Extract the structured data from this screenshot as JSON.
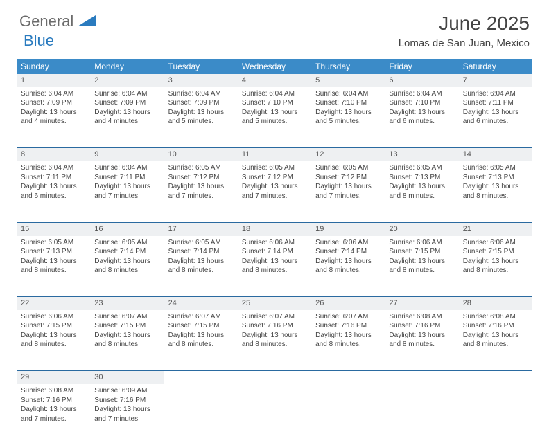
{
  "logo": {
    "text1": "General",
    "text2": "Blue",
    "color1": "#6b6b6b",
    "color2": "#2a7bbf"
  },
  "title": "June 2025",
  "location": "Lomas de San Juan, Mexico",
  "colors": {
    "header_bg": "#3b8bc8",
    "daynum_bg": "#eef0f2",
    "row_border": "#2a6aa0",
    "text": "#444444"
  },
  "weekdays": [
    "Sunday",
    "Monday",
    "Tuesday",
    "Wednesday",
    "Thursday",
    "Friday",
    "Saturday"
  ],
  "weeks": [
    [
      {
        "n": "1",
        "sr": "6:04 AM",
        "ss": "7:09 PM",
        "dl": "13 hours and 4 minutes."
      },
      {
        "n": "2",
        "sr": "6:04 AM",
        "ss": "7:09 PM",
        "dl": "13 hours and 4 minutes."
      },
      {
        "n": "3",
        "sr": "6:04 AM",
        "ss": "7:09 PM",
        "dl": "13 hours and 5 minutes."
      },
      {
        "n": "4",
        "sr": "6:04 AM",
        "ss": "7:10 PM",
        "dl": "13 hours and 5 minutes."
      },
      {
        "n": "5",
        "sr": "6:04 AM",
        "ss": "7:10 PM",
        "dl": "13 hours and 5 minutes."
      },
      {
        "n": "6",
        "sr": "6:04 AM",
        "ss": "7:10 PM",
        "dl": "13 hours and 6 minutes."
      },
      {
        "n": "7",
        "sr": "6:04 AM",
        "ss": "7:11 PM",
        "dl": "13 hours and 6 minutes."
      }
    ],
    [
      {
        "n": "8",
        "sr": "6:04 AM",
        "ss": "7:11 PM",
        "dl": "13 hours and 6 minutes."
      },
      {
        "n": "9",
        "sr": "6:04 AM",
        "ss": "7:11 PM",
        "dl": "13 hours and 7 minutes."
      },
      {
        "n": "10",
        "sr": "6:05 AM",
        "ss": "7:12 PM",
        "dl": "13 hours and 7 minutes."
      },
      {
        "n": "11",
        "sr": "6:05 AM",
        "ss": "7:12 PM",
        "dl": "13 hours and 7 minutes."
      },
      {
        "n": "12",
        "sr": "6:05 AM",
        "ss": "7:12 PM",
        "dl": "13 hours and 7 minutes."
      },
      {
        "n": "13",
        "sr": "6:05 AM",
        "ss": "7:13 PM",
        "dl": "13 hours and 8 minutes."
      },
      {
        "n": "14",
        "sr": "6:05 AM",
        "ss": "7:13 PM",
        "dl": "13 hours and 8 minutes."
      }
    ],
    [
      {
        "n": "15",
        "sr": "6:05 AM",
        "ss": "7:13 PM",
        "dl": "13 hours and 8 minutes."
      },
      {
        "n": "16",
        "sr": "6:05 AM",
        "ss": "7:14 PM",
        "dl": "13 hours and 8 minutes."
      },
      {
        "n": "17",
        "sr": "6:05 AM",
        "ss": "7:14 PM",
        "dl": "13 hours and 8 minutes."
      },
      {
        "n": "18",
        "sr": "6:06 AM",
        "ss": "7:14 PM",
        "dl": "13 hours and 8 minutes."
      },
      {
        "n": "19",
        "sr": "6:06 AM",
        "ss": "7:14 PM",
        "dl": "13 hours and 8 minutes."
      },
      {
        "n": "20",
        "sr": "6:06 AM",
        "ss": "7:15 PM",
        "dl": "13 hours and 8 minutes."
      },
      {
        "n": "21",
        "sr": "6:06 AM",
        "ss": "7:15 PM",
        "dl": "13 hours and 8 minutes."
      }
    ],
    [
      {
        "n": "22",
        "sr": "6:06 AM",
        "ss": "7:15 PM",
        "dl": "13 hours and 8 minutes."
      },
      {
        "n": "23",
        "sr": "6:07 AM",
        "ss": "7:15 PM",
        "dl": "13 hours and 8 minutes."
      },
      {
        "n": "24",
        "sr": "6:07 AM",
        "ss": "7:15 PM",
        "dl": "13 hours and 8 minutes."
      },
      {
        "n": "25",
        "sr": "6:07 AM",
        "ss": "7:16 PM",
        "dl": "13 hours and 8 minutes."
      },
      {
        "n": "26",
        "sr": "6:07 AM",
        "ss": "7:16 PM",
        "dl": "13 hours and 8 minutes."
      },
      {
        "n": "27",
        "sr": "6:08 AM",
        "ss": "7:16 PM",
        "dl": "13 hours and 8 minutes."
      },
      {
        "n": "28",
        "sr": "6:08 AM",
        "ss": "7:16 PM",
        "dl": "13 hours and 8 minutes."
      }
    ],
    [
      {
        "n": "29",
        "sr": "6:08 AM",
        "ss": "7:16 PM",
        "dl": "13 hours and 7 minutes."
      },
      {
        "n": "30",
        "sr": "6:09 AM",
        "ss": "7:16 PM",
        "dl": "13 hours and 7 minutes."
      },
      null,
      null,
      null,
      null,
      null
    ]
  ],
  "labels": {
    "sunrise": "Sunrise:",
    "sunset": "Sunset:",
    "daylight": "Daylight:"
  }
}
